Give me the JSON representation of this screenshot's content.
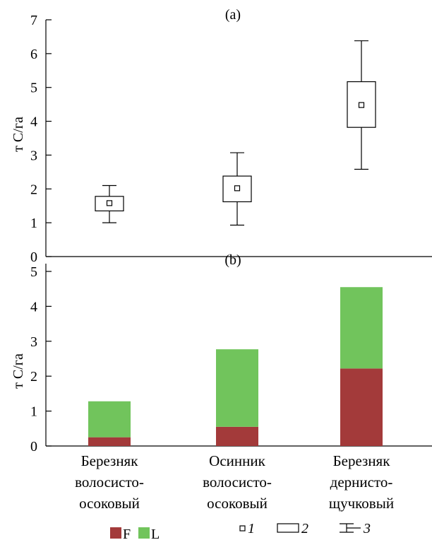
{
  "chart_data": [
    {
      "type": "box",
      "panel_label": "(a)",
      "ylabel": "т С/га",
      "ylim": [
        0,
        7
      ],
      "yticks": [
        0,
        1,
        2,
        3,
        4,
        5,
        6,
        7
      ],
      "categories": [
        "Березняк волосисто-осоковый",
        "Осинник волосисто-осоковый",
        "Березняк дернисто-щучковый"
      ],
      "boxes": [
        {
          "mean": 1.58,
          "box_low": 1.35,
          "box_high": 1.78,
          "whisker_low": 1.0,
          "whisker_high": 2.1
        },
        {
          "mean": 2.02,
          "box_low": 1.62,
          "box_high": 2.38,
          "whisker_low": 0.93,
          "whisker_high": 3.07
        },
        {
          "mean": 4.48,
          "box_low": 3.82,
          "box_high": 5.17,
          "whisker_low": 2.58,
          "whisker_high": 6.38
        }
      ],
      "grid": false
    },
    {
      "type": "bar",
      "stacked": true,
      "panel_label": "(b)",
      "ylabel": "т С/га",
      "ylim": [
        0,
        5
      ],
      "yticks": [
        0,
        1,
        2,
        3,
        4,
        5
      ],
      "categories": [
        "Березняк волосисто-осоковый",
        "Осинник волосисто-осоковый",
        "Березняк дернисто-щучковый"
      ],
      "series": [
        {
          "name": "F",
          "color": "#a33a3a",
          "values": [
            0.25,
            0.55,
            2.22
          ]
        },
        {
          "name": "L",
          "color": "#71c45c",
          "values": [
            1.03,
            2.22,
            2.33
          ]
        }
      ],
      "grid": false
    }
  ],
  "category_lines": [
    [
      "Березняк",
      "волосисто-",
      "осоковый"
    ],
    [
      "Осинник",
      "волосисто-",
      "осоковый"
    ],
    [
      "Березняк",
      "дернисто-",
      "щучковый"
    ]
  ],
  "legend_left": [
    {
      "label": "F",
      "color": "#a33a3a"
    },
    {
      "label": "L",
      "color": "#71c45c"
    }
  ],
  "legend_right": [
    {
      "symbol": "mean-square",
      "label": "1"
    },
    {
      "symbol": "box",
      "label": "2"
    },
    {
      "symbol": "whisker",
      "label": "3"
    }
  ]
}
